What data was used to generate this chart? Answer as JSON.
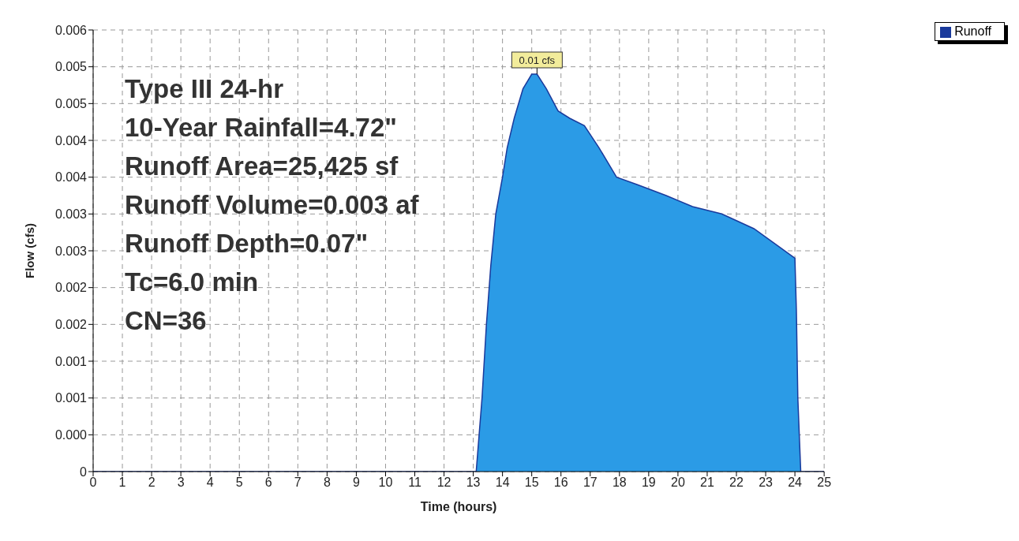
{
  "chart_data": {
    "type": "area",
    "xlabel": "Time (hours)",
    "ylabel": "Flow (cfs)",
    "x": [
      0,
      13.1,
      13.3,
      13.45,
      13.6,
      13.77,
      14.0,
      14.16,
      14.4,
      14.7,
      15.0,
      15.18,
      15.5,
      15.9,
      16.3,
      16.8,
      17.3,
      17.9,
      18.6,
      19.6,
      20.5,
      21.5,
      22.6,
      23.3,
      24.0,
      24.05,
      24.1,
      24.2,
      25
    ],
    "series": [
      {
        "name": "Runoff",
        "color": "#2b9be6",
        "values": [
          0,
          0,
          0.001,
          0.002,
          0.0028,
          0.0035,
          0.004,
          0.0044,
          0.0048,
          0.0052,
          0.0054,
          0.0054,
          0.0052,
          0.0049,
          0.0048,
          0.0047,
          0.0044,
          0.004,
          0.0039,
          0.00375,
          0.0036,
          0.0035,
          0.0033,
          0.0031,
          0.0029,
          0.0022,
          0.001,
          0,
          0
        ]
      }
    ],
    "xlim": [
      0,
      25
    ],
    "xticks": [
      0,
      1,
      2,
      3,
      4,
      5,
      6,
      7,
      8,
      9,
      10,
      11,
      12,
      13,
      14,
      15,
      16,
      17,
      18,
      19,
      20,
      21,
      22,
      23,
      24,
      25
    ],
    "ylim": [
      0,
      0.006
    ],
    "yticks": [
      0,
      {
        "value": 0.0005,
        "label": "0.000"
      },
      0.001,
      {
        "value": 0.0015,
        "label": "0.001"
      },
      0.002,
      {
        "value": 0.0025,
        "label": "0.002"
      },
      0.003,
      {
        "value": 0.0035,
        "label": "0.003"
      },
      0.004,
      {
        "value": 0.0045,
        "label": "0.004"
      },
      0.005,
      {
        "value": 0.0055,
        "label": "0.005"
      },
      0.006
    ],
    "grid": true,
    "legend": "top right",
    "annotations": [
      {
        "text": "0.01 cfs",
        "x": 15.18,
        "y": 0.0054
      },
      "Type III 24-hr",
      "10-Year Rainfall=4.72\"",
      "Runoff Area=25,425 sf",
      "Runoff Volume=0.003 af",
      "Runoff Depth=0.07\"",
      "Tc=6.0 min",
      "CN=36"
    ]
  }
}
